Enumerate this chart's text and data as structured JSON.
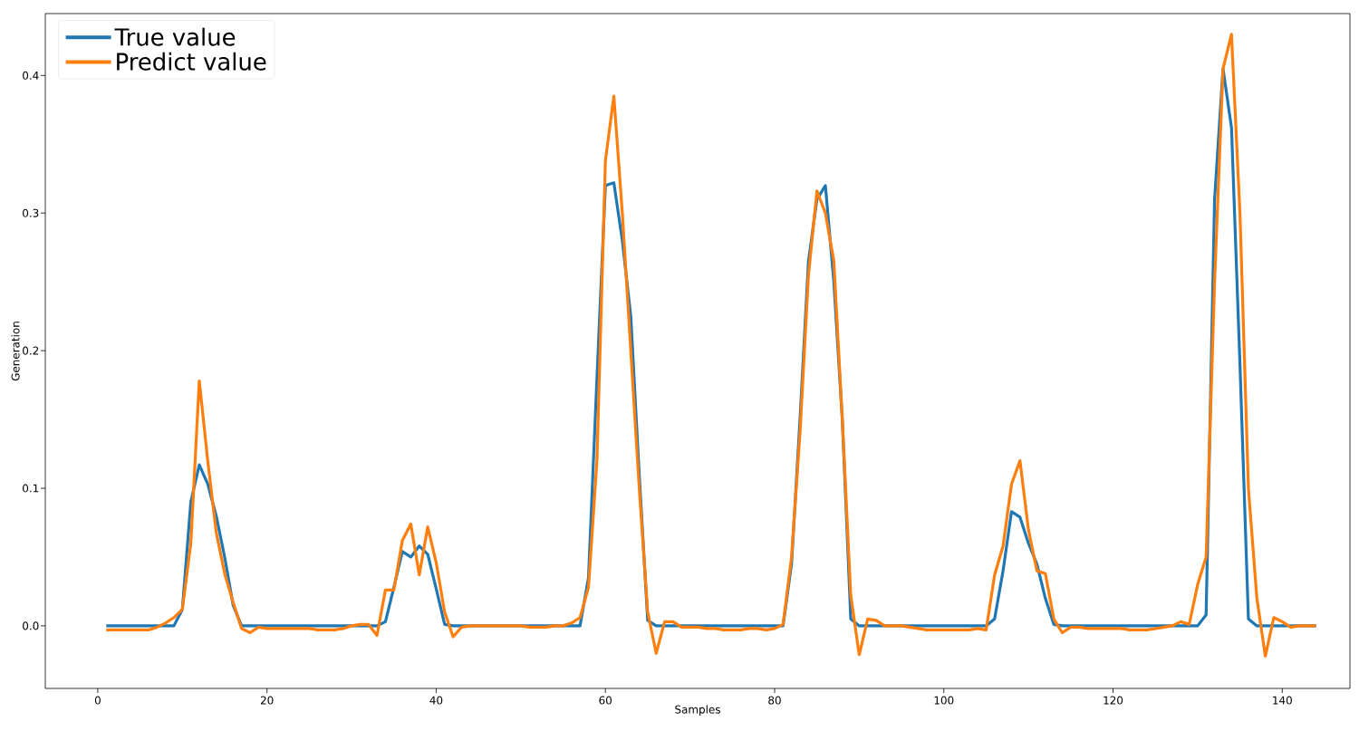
{
  "chart_data": {
    "type": "line",
    "xlabel": "Samples",
    "ylabel": "Generation",
    "x": [
      1,
      2,
      3,
      4,
      5,
      6,
      7,
      8,
      9,
      10,
      11,
      12,
      13,
      14,
      15,
      16,
      17,
      18,
      19,
      20,
      21,
      22,
      23,
      24,
      25,
      26,
      27,
      28,
      29,
      30,
      31,
      32,
      33,
      34,
      35,
      36,
      37,
      38,
      39,
      40,
      41,
      42,
      43,
      44,
      45,
      46,
      47,
      48,
      49,
      50,
      51,
      52,
      53,
      54,
      55,
      56,
      57,
      58,
      59,
      60,
      61,
      62,
      63,
      64,
      65,
      66,
      67,
      68,
      69,
      70,
      71,
      72,
      73,
      74,
      75,
      76,
      77,
      78,
      79,
      80,
      81,
      82,
      83,
      84,
      85,
      86,
      87,
      88,
      89,
      90,
      91,
      92,
      93,
      94,
      95,
      96,
      97,
      98,
      99,
      100,
      101,
      102,
      103,
      104,
      105,
      106,
      107,
      108,
      109,
      110,
      111,
      112,
      113,
      114,
      115,
      116,
      117,
      118,
      119,
      120,
      121,
      122,
      123,
      124,
      125,
      126,
      127,
      128,
      129,
      130,
      131,
      132,
      133,
      134,
      135,
      136,
      137,
      138,
      139,
      140,
      141,
      142,
      143,
      144
    ],
    "series": [
      {
        "name": "True value",
        "color": "#1f77b4",
        "values": [
          0,
          0,
          0,
          0,
          0,
          0,
          0,
          0,
          0,
          0.012,
          0.09,
          0.117,
          0.103,
          0.08,
          0.05,
          0.015,
          0,
          0,
          0,
          0,
          0,
          0,
          0,
          0,
          0,
          0,
          0,
          0,
          0,
          0,
          0,
          0,
          0,
          0.003,
          0.028,
          0.054,
          0.05,
          0.058,
          0.052,
          0.027,
          0.001,
          0,
          0,
          0,
          0,
          0,
          0,
          0,
          0,
          0,
          0,
          0,
          0,
          0,
          0,
          0,
          0,
          0.035,
          0.18,
          0.32,
          0.322,
          0.28,
          0.225,
          0.11,
          0.004,
          0,
          0,
          0,
          0,
          0,
          0,
          0,
          0,
          0,
          0,
          0,
          0,
          0,
          0,
          0,
          0,
          0.045,
          0.15,
          0.265,
          0.31,
          0.32,
          0.25,
          0.15,
          0.005,
          0,
          0,
          0,
          0,
          0,
          0,
          0,
          0,
          0,
          0,
          0,
          0,
          0,
          0,
          0,
          0,
          0.005,
          0.04,
          0.083,
          0.079,
          0.06,
          0.045,
          0.02,
          0.001,
          0,
          0,
          0,
          0,
          0,
          0,
          0,
          0,
          0,
          0,
          0,
          0,
          0,
          0,
          0,
          0,
          0,
          0.008,
          0.31,
          0.405,
          0.362,
          0.19,
          0.005,
          0,
          0,
          0,
          0,
          0,
          0,
          0,
          0
        ]
      },
      {
        "name": "Predict value",
        "color": "#ff7f0e",
        "values": [
          -0.003,
          -0.003,
          -0.003,
          -0.003,
          -0.003,
          -0.003,
          -0.001,
          0.002,
          0.006,
          0.012,
          0.06,
          0.178,
          0.12,
          0.068,
          0.038,
          0.017,
          -0.002,
          -0.005,
          -0.001,
          -0.002,
          -0.002,
          -0.002,
          -0.002,
          -0.002,
          -0.002,
          -0.003,
          -0.003,
          -0.003,
          -0.002,
          0,
          0.001,
          0.001,
          -0.007,
          0.026,
          0.026,
          0.062,
          0.074,
          0.037,
          0.072,
          0.046,
          0.01,
          -0.008,
          -0.001,
          0,
          0,
          0,
          0,
          0,
          0,
          0,
          -0.001,
          -0.001,
          -0.001,
          0,
          0,
          0.002,
          0.006,
          0.028,
          0.12,
          0.338,
          0.385,
          0.3,
          0.2,
          0.1,
          0.01,
          -0.02,
          0.003,
          0.003,
          -0.001,
          -0.001,
          -0.001,
          -0.002,
          -0.002,
          -0.003,
          -0.003,
          -0.003,
          -0.002,
          -0.002,
          -0.003,
          -0.002,
          0.001,
          0.05,
          0.14,
          0.255,
          0.316,
          0.3,
          0.265,
          0.15,
          0.022,
          -0.021,
          0.005,
          0.004,
          0,
          0,
          0,
          -0.001,
          -0.002,
          -0.003,
          -0.003,
          -0.003,
          -0.003,
          -0.003,
          -0.003,
          -0.002,
          -0.003,
          0.037,
          0.058,
          0.103,
          0.12,
          0.07,
          0.04,
          0.038,
          0.005,
          -0.005,
          -0.001,
          -0.001,
          -0.002,
          -0.002,
          -0.002,
          -0.002,
          -0.002,
          -0.003,
          -0.003,
          -0.003,
          -0.002,
          -0.001,
          0,
          0.003,
          0.001,
          0.03,
          0.05,
          0.25,
          0.405,
          0.43,
          0.3,
          0.1,
          0.02,
          -0.022,
          0.006,
          0.003,
          -0.001,
          0,
          0,
          0
        ]
      }
    ],
    "xlim": [
      -6.2,
      148
    ],
    "ylim": [
      -0.0455,
      0.445
    ],
    "xticks": [
      0,
      20,
      40,
      60,
      80,
      100,
      120,
      140
    ],
    "yticks": [
      {
        "value": 0,
        "label": "0.0"
      },
      {
        "value": 0.1,
        "label": "0.1"
      },
      {
        "value": 0.2,
        "label": "0.2"
      },
      {
        "value": 0.3,
        "label": "0.3"
      },
      {
        "value": 0.4,
        "label": "0.4"
      }
    ],
    "legend": "top left",
    "marker": "none",
    "line_style": "solid",
    "grid": false
  }
}
